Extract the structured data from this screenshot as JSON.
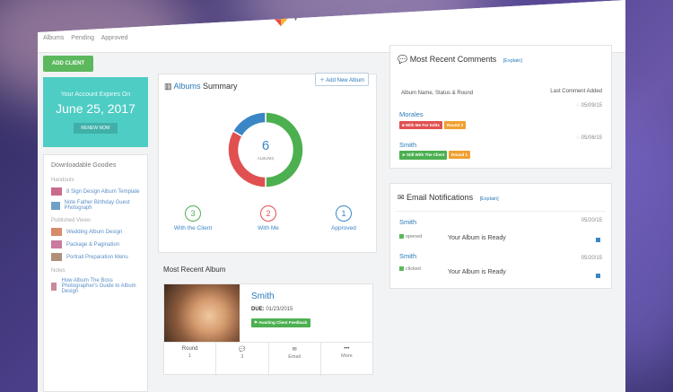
{
  "header": {
    "breadcrumbs": [
      "Albums",
      "Pending",
      "Approved"
    ]
  },
  "sidebar": {
    "add_button": "ADD CLIENT",
    "trial": {
      "text": "Your Account Expires On",
      "date": "June 25, 2017",
      "button": "RENEW NOW"
    },
    "downloads": {
      "title": "Downloadable Goodies",
      "sections": [
        {
          "title": "Handouts",
          "items": [
            "8 Sign Design Album Template",
            "Note Father Birthday Guest Photograph"
          ]
        },
        {
          "title": "Published Views",
          "items": [
            "Wedding Album Design",
            "Package & Pagination",
            "Portrait Preparation Menu"
          ]
        },
        {
          "title": "Notes",
          "items": [
            "How Album The Boss Photographer's Guide to Album Design"
          ]
        }
      ]
    }
  },
  "albums_summary": {
    "title_prefix": "Albums",
    "title_suffix": "Summary",
    "add_button": "Add New Album",
    "donut": {
      "total": "6",
      "total_label": "ALBUMS",
      "segments": [
        {
          "name": "With the Client",
          "value": 3,
          "color": "#4cb050"
        },
        {
          "name": "With Me",
          "value": 2,
          "color": "#e05050"
        },
        {
          "name": "Approved",
          "value": 1,
          "color": "#3a86c6"
        }
      ]
    },
    "stats": [
      {
        "value": "3",
        "label": "With the Client",
        "color": "#4cb050"
      },
      {
        "value": "2",
        "label": "With Me",
        "color": "#e05050"
      },
      {
        "value": "1",
        "label": "Approved",
        "color": "#3a86c6"
      }
    ]
  },
  "recent_album": {
    "section_title": "Most Recent Album",
    "name": "Smith",
    "due_label": "DUE:",
    "due_date": "01/23/2015",
    "badge": "Awaiting Client Feedback",
    "actions": [
      {
        "label": "Round",
        "value": "1"
      },
      {
        "label": "",
        "value": "3"
      },
      {
        "label": "Email",
        "value": ""
      },
      {
        "label": "More",
        "value": ""
      }
    ]
  },
  "comments": {
    "title": "Most Recent Comments",
    "explain": "[Explain]",
    "col_left": "Album Name, Status & Round",
    "col_right": "Last Comment Added",
    "rows": [
      {
        "name": "Morales",
        "status": "With Me For Edits",
        "round": "Round 3",
        "date": "05/09/15",
        "status_color": "#e05050"
      },
      {
        "name": "Smith",
        "status": "Still With The Client",
        "round": "Round 1",
        "date": "05/06/15",
        "status_color": "#4cb050"
      }
    ]
  },
  "email": {
    "title": "Email Notifications",
    "explain": "[Explain]",
    "rows": [
      {
        "name": "Smith",
        "status": "opened",
        "message": "Your Album is Ready",
        "date": "05/20/15"
      },
      {
        "name": "Smith",
        "status": "clicked",
        "message": "Your Album is Ready",
        "date": "05/20/15"
      }
    ]
  }
}
